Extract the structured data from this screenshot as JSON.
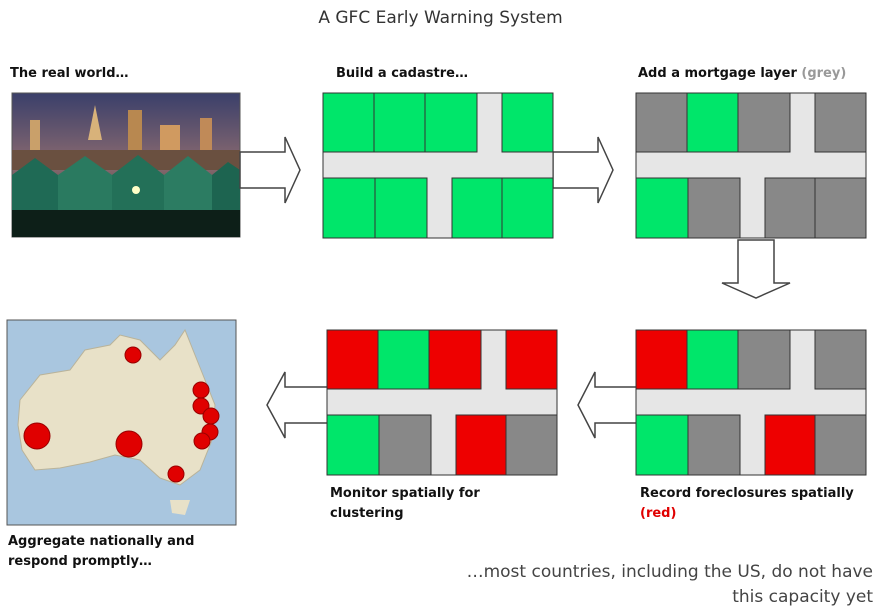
{
  "title": "A GFC Early Warning System",
  "steps": [
    {
      "label": "The real world…"
    },
    {
      "label": "Build a cadastre…"
    },
    {
      "label": "Add a mortgage layer",
      "note": "(grey)"
    },
    {
      "label": "Record foreclosures spatially",
      "note": "(red)"
    },
    {
      "lines": [
        "Monitor spatially for",
        "clustering"
      ]
    },
    {
      "lines": [
        "Aggregate nationally and",
        "respond promptly…"
      ]
    }
  ],
  "footer": [
    "…most countries, including the US, do not have",
    "this capacity yet"
  ]
}
